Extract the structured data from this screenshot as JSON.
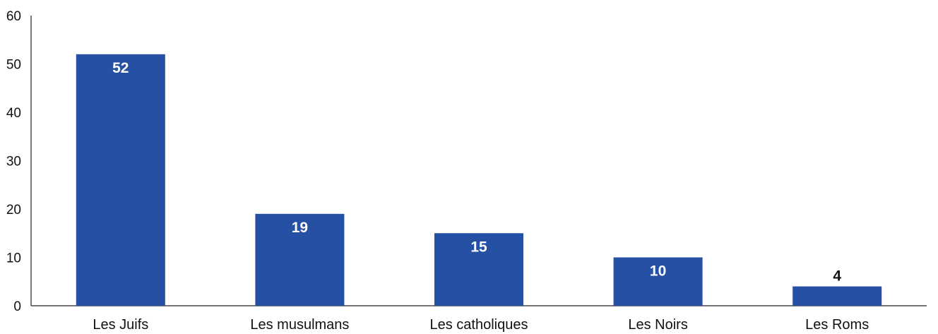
{
  "chart_data": {
    "type": "bar",
    "categories": [
      "Les Juifs",
      "Les musulmans",
      "Les catholiques",
      "Les Noirs",
      "Les Roms"
    ],
    "values": [
      52,
      19,
      15,
      10,
      4
    ],
    "data_labels": [
      "52",
      "19",
      "15",
      "10",
      "4"
    ],
    "title": "",
    "xlabel": "",
    "ylabel": "",
    "ylim": [
      0,
      60
    ],
    "yticks": [
      0,
      10,
      20,
      30,
      40,
      50,
      60
    ],
    "grid": false,
    "bar_color": "#2550a3",
    "label_color_inside": "#ffffff",
    "label_color_outside": "#111111"
  }
}
